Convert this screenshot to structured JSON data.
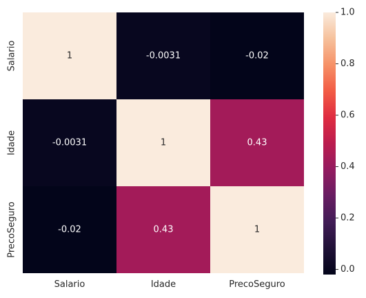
{
  "chart_data": {
    "type": "heatmap",
    "x_categories": [
      "Salario",
      "Idade",
      "PrecoSeguro"
    ],
    "y_categories": [
      "Salario",
      "Idade",
      "PrecoSeguro"
    ],
    "values": [
      [
        1,
        -0.0031,
        -0.02
      ],
      [
        -0.0031,
        1,
        0.43
      ],
      [
        -0.02,
        0.43,
        1
      ]
    ],
    "annotations": [
      [
        "1",
        "-0.0031",
        "-0.02"
      ],
      [
        "-0.0031",
        "1",
        "0.43"
      ],
      [
        "-0.02",
        "0.43",
        "1"
      ]
    ],
    "colorbar": {
      "range": [
        -0.02,
        1.0
      ],
      "ticks": [
        "0.0",
        "0.2",
        "0.4",
        "0.6",
        "0.8",
        "1.0"
      ],
      "colormap": "rocket"
    },
    "title": "",
    "xlabel": "",
    "ylabel": ""
  }
}
